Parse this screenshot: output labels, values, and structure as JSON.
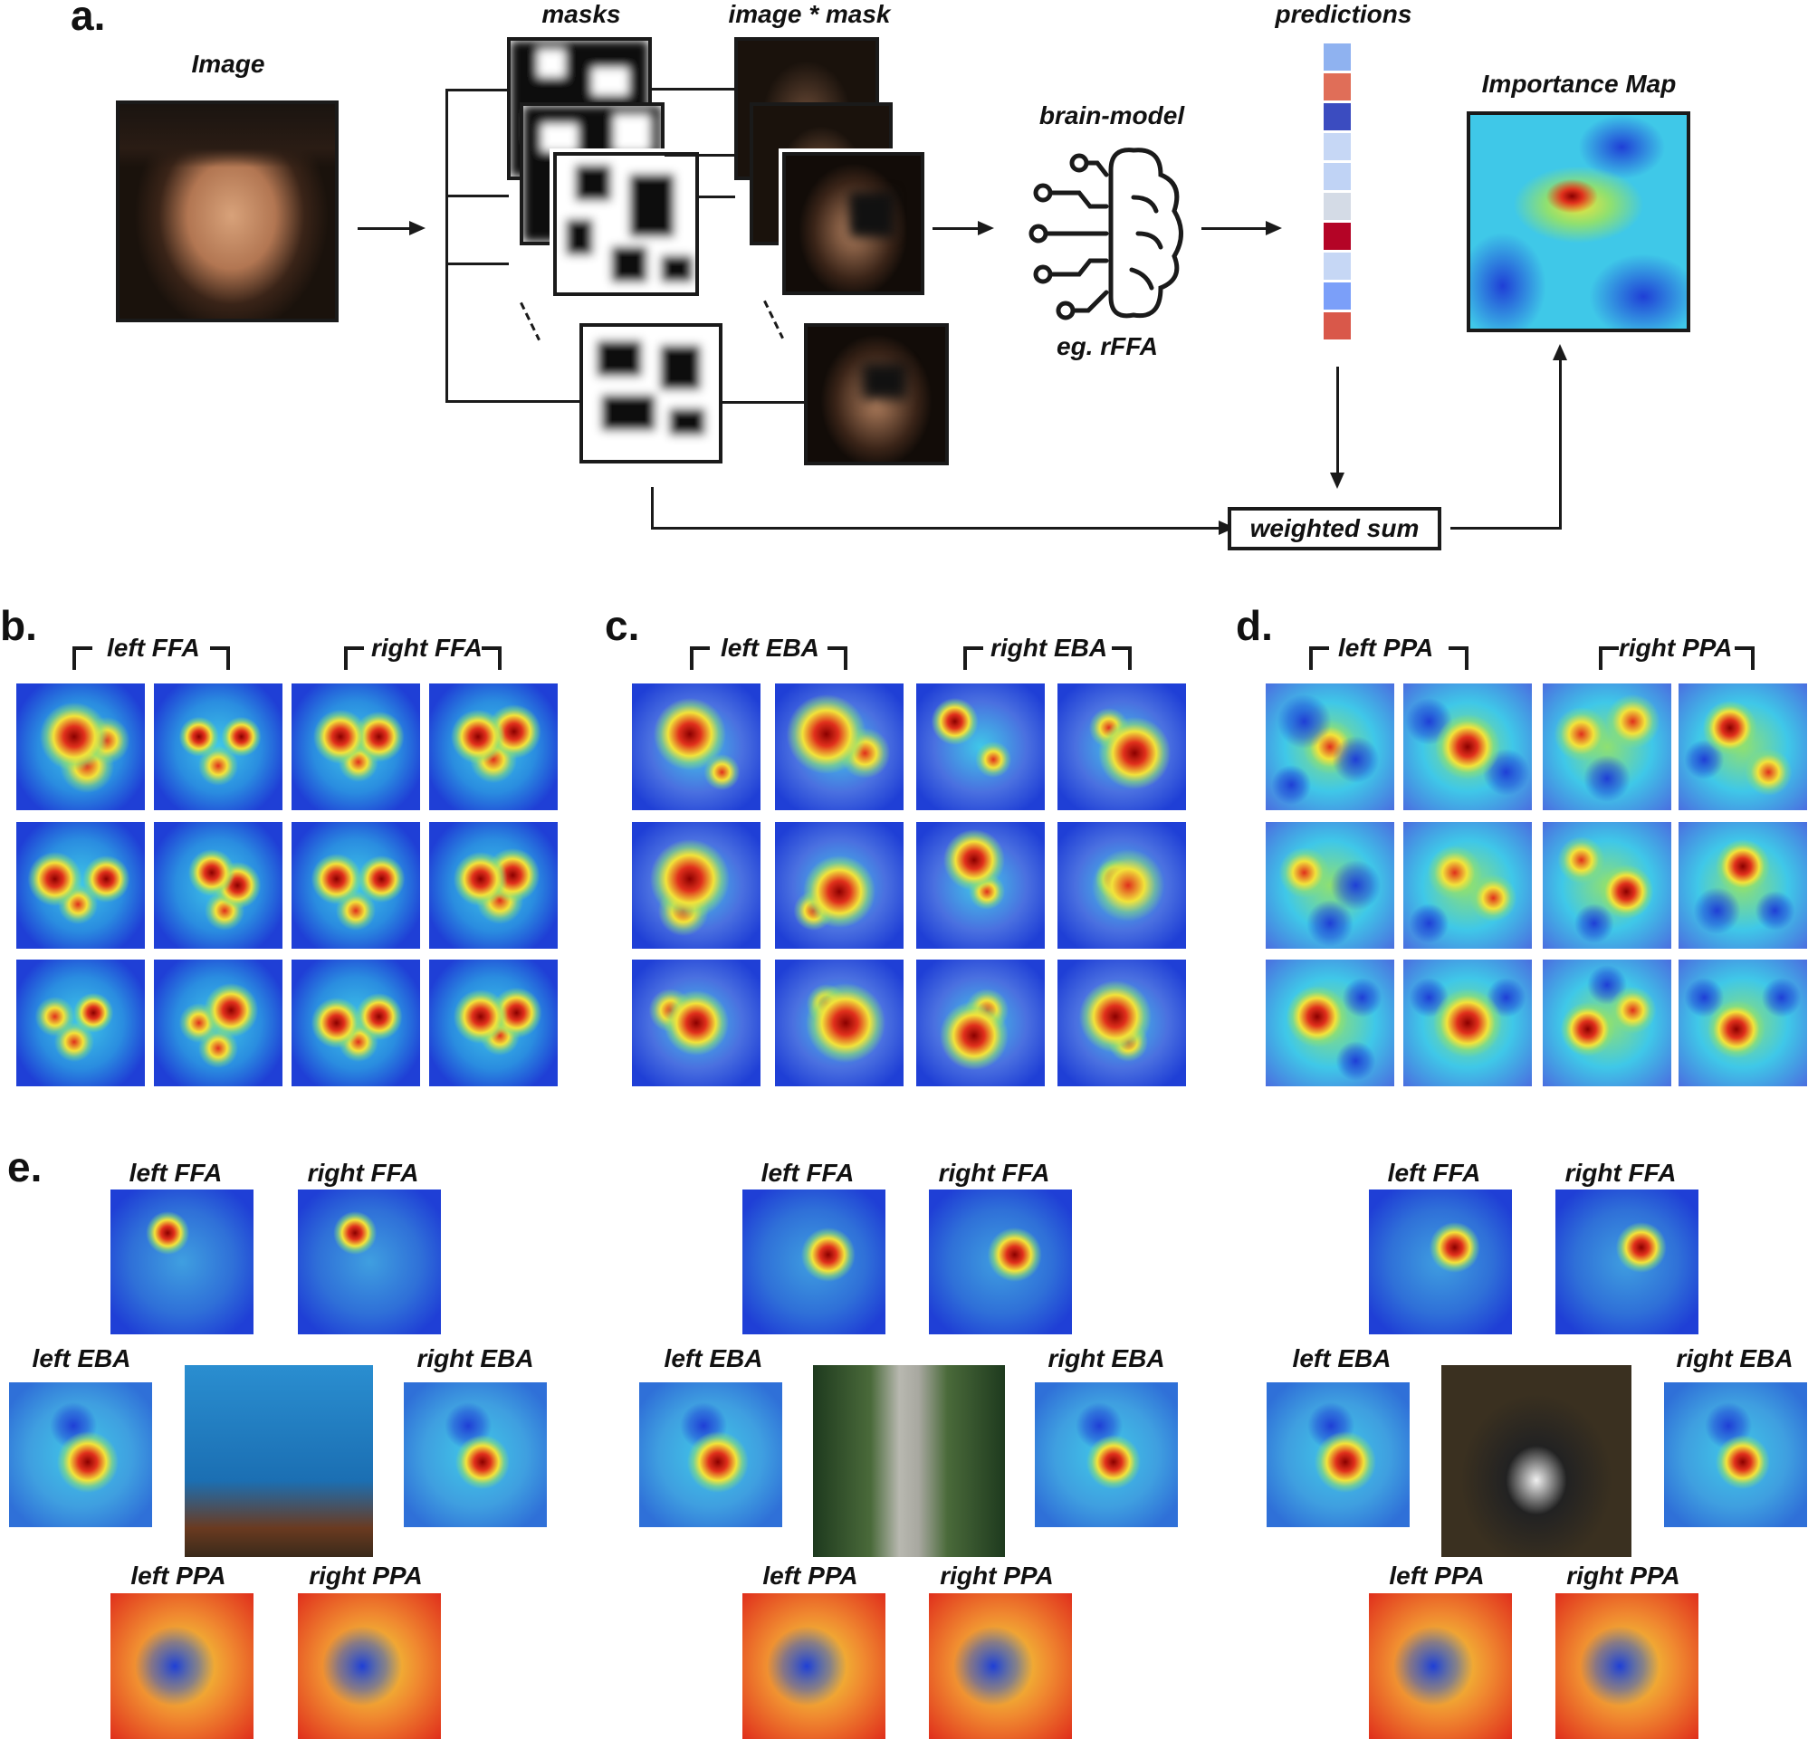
{
  "panel_a": {
    "letter": "a.",
    "image_label": "Image",
    "masks_label": "masks",
    "image_mask_label": "image * mask",
    "brain_model_label": "brain-model",
    "brain_example_label": "eg. rFFA",
    "predictions_label": "predictions",
    "importance_label": "Importance Map",
    "weighted_sum_label": "weighted sum",
    "prediction_colors": [
      "#8fb2f0",
      "#e06e58",
      "#3b4cc0",
      "#c6d7f5",
      "#c0d3f5",
      "#d4dbe6",
      "#b40426",
      "#c6d7f5",
      "#7b9ff9",
      "#d9584a"
    ]
  },
  "panel_b": {
    "letter": "b.",
    "left_label": "left FFA",
    "right_label": "right FFA"
  },
  "panel_c": {
    "letter": "c.",
    "left_label": "left EBA",
    "right_label": "right EBA"
  },
  "panel_d": {
    "letter": "d.",
    "left_label": "left PPA",
    "right_label": "right PPA"
  },
  "panel_e": {
    "letter": "e.",
    "groups": [
      {
        "left_ffa": "left FFA",
        "right_ffa": "right FFA",
        "left_eba": "left EBA",
        "right_eba": "right EBA",
        "left_ppa": "left PPA",
        "right_ppa": "right PPA"
      },
      {
        "left_ffa": "left FFA",
        "right_ffa": "right FFA",
        "left_eba": "left EBA",
        "right_eba": "right EBA",
        "left_ppa": "left PPA",
        "right_ppa": "right PPA"
      },
      {
        "left_ffa": "left FFA",
        "right_ffa": "right FFA",
        "left_eba": "left EBA",
        "right_eba": "right EBA",
        "left_ppa": "left PPA",
        "right_ppa": "right PPA"
      }
    ]
  },
  "colors": {
    "jet_blue": "#1f3fd6",
    "jet_cyan": "#3fc8e8",
    "jet_green": "#8fe070",
    "jet_yellow": "#f2e33a",
    "jet_red": "#e0301c",
    "dark_red": "#8b0000"
  }
}
